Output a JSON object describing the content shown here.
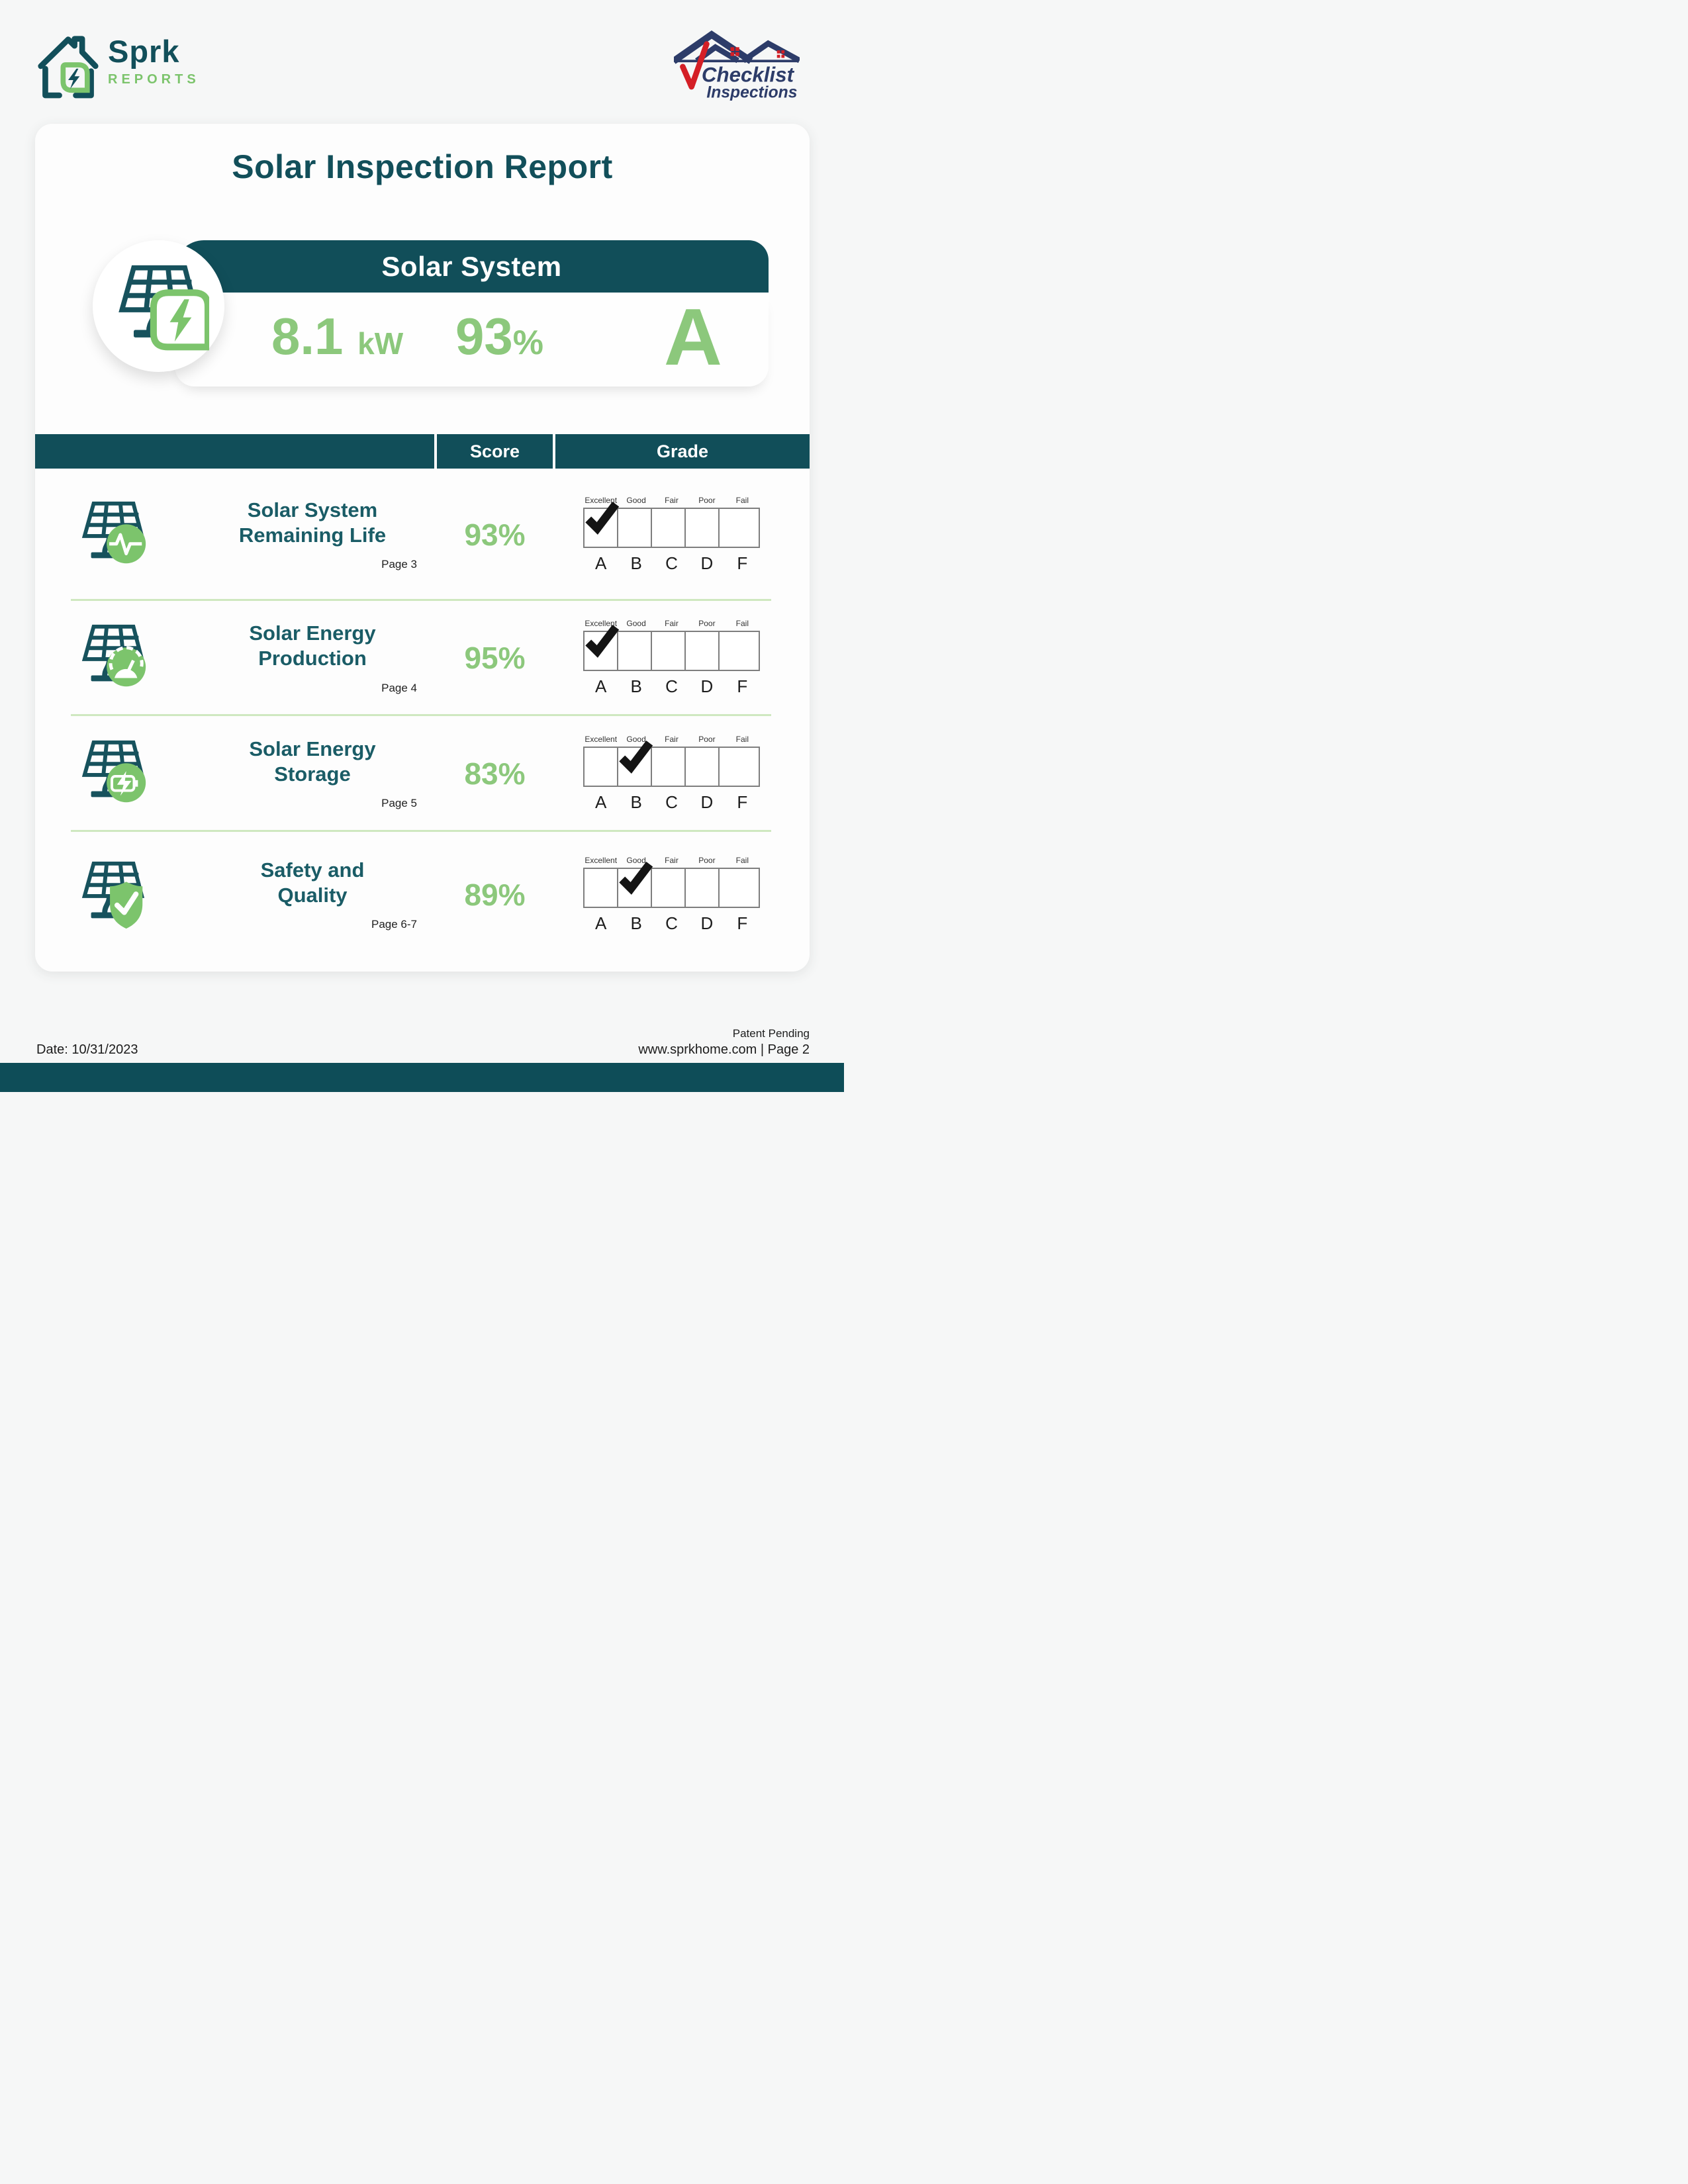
{
  "brand": {
    "name": "Sprk",
    "sub": "REPORTS"
  },
  "partner": {
    "line1": "Checklist",
    "line2": "Inspections"
  },
  "title": "Solar Inspection Report",
  "hero": {
    "title": "Solar System",
    "kw_value": "8.1",
    "kw_unit": "kW",
    "score_value": "93",
    "score_unit": "%",
    "grade": "A"
  },
  "table": {
    "headers": {
      "score": "Score",
      "grade": "Grade"
    },
    "grade_scale": {
      "labels": [
        "Excellent",
        "Good",
        "Fair",
        "Poor",
        "Fail"
      ],
      "letters": [
        "A",
        "B",
        "C",
        "D",
        "F"
      ]
    },
    "rows": [
      {
        "title_line1": "Solar System",
        "title_line2": "Remaining Life",
        "page": "Page 3",
        "score": "93%",
        "checked_index": 0,
        "icon": "pulse"
      },
      {
        "title_line1": "Solar Energy",
        "title_line2": "Production",
        "page": "Page 4",
        "score": "95%",
        "checked_index": 0,
        "icon": "gauge"
      },
      {
        "title_line1": "Solar Energy",
        "title_line2": "Storage",
        "page": "Page 5",
        "score": "83%",
        "checked_index": 1,
        "icon": "battery"
      },
      {
        "title_line1": "Safety and",
        "title_line2": "Quality",
        "page": "Page 6-7",
        "score": "89%",
        "checked_index": 1,
        "icon": "shield"
      }
    ]
  },
  "footer": {
    "date": "Date: 10/31/2023",
    "patent": "Patent Pending",
    "site": "www.sprkhome.com | Page 2"
  },
  "colors": {
    "teal": "#114e59",
    "row_title_teal": "#1a5c66",
    "green": "#8cc87c",
    "icon_green": "#7cc46c",
    "separator_green": "#cfe8c0",
    "navy": "#2d3c69",
    "red": "#d41f26"
  }
}
